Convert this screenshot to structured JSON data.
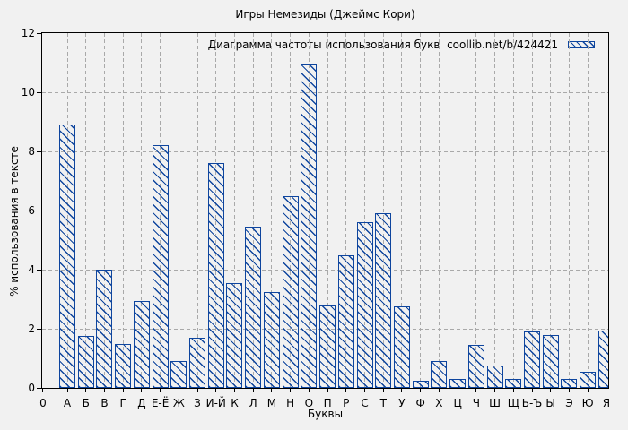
{
  "figure": {
    "background_color": "#f1f1f1",
    "bar_color": "#0e459e",
    "grid_color": "#a9a9a9",
    "axis_color": "#000000"
  },
  "chart_data": {
    "type": "bar",
    "title": "Игры Немезиды (Джеймс Кори)",
    "legend_text": "Диаграмма частоты использования букв  coollib.net/b/424421",
    "xlabel": "Буквы",
    "ylabel": "% использования в тексте",
    "x_origin_label": "0",
    "ylim": [
      0,
      12
    ],
    "yticks": [
      0,
      2,
      4,
      6,
      8,
      10,
      12
    ],
    "grid": true,
    "legend_position": "top-right-inside",
    "bar_style": "diagonal-hatch",
    "categories": [
      "А",
      "Б",
      "В",
      "Г",
      "Д",
      "Е-Ё",
      "Ж",
      "З",
      "И-Й",
      "К",
      "Л",
      "М",
      "Н",
      "О",
      "П",
      "Р",
      "С",
      "Т",
      "У",
      "Ф",
      "Х",
      "Ц",
      "Ч",
      "Ш",
      "Щ",
      "Ь-Ъ",
      "Ы",
      "Э",
      "Ю",
      "Я"
    ],
    "values": [
      8.9,
      1.75,
      4.0,
      1.5,
      2.95,
      8.2,
      0.9,
      1.7,
      7.6,
      3.55,
      5.45,
      3.25,
      6.5,
      10.95,
      2.8,
      4.5,
      5.6,
      5.9,
      2.75,
      0.25,
      0.9,
      0.3,
      1.45,
      0.75,
      0.3,
      1.9,
      1.8,
      0.3,
      0.55,
      1.95
    ]
  }
}
